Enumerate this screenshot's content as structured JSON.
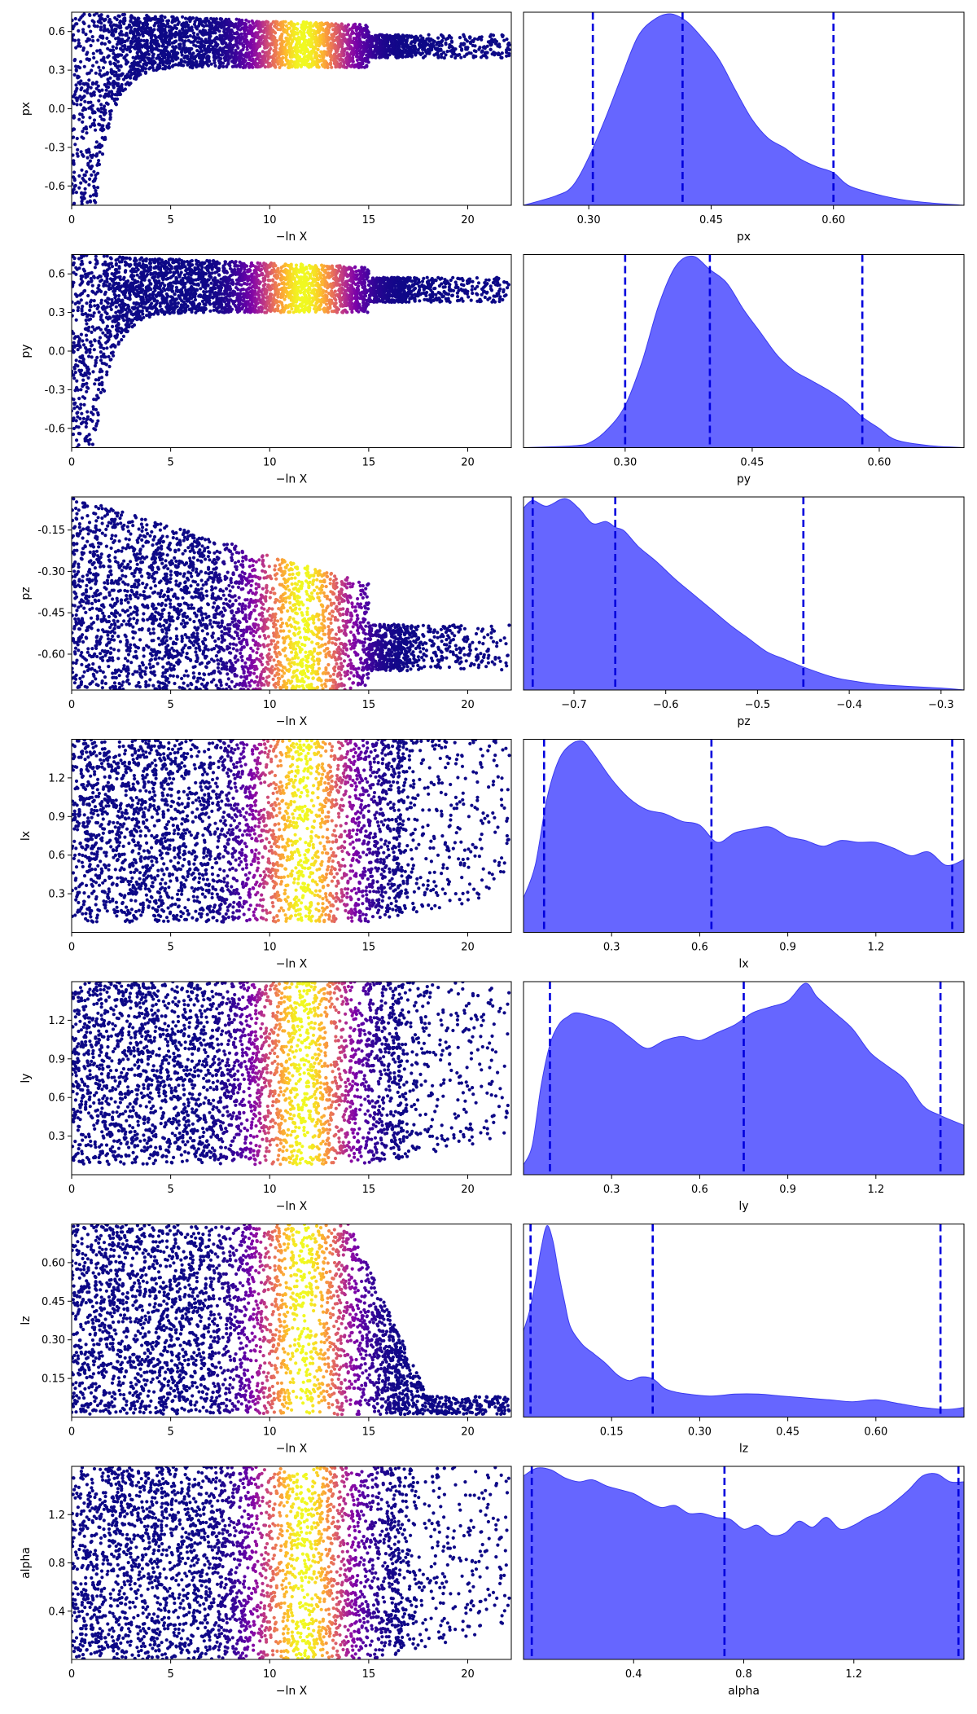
{
  "colors": {
    "kde_fill": "#6666ff",
    "kde_edge": "#3b3bf0",
    "quantile_line": "#0000dd",
    "scatter_colormap": "plasma"
  },
  "chart_data": [
    {
      "type": "scatter",
      "panel": "trace-px",
      "xlabel": "−ln X",
      "ylabel": "px",
      "xlim": [
        0,
        22.2
      ],
      "ylim": [
        -0.75,
        0.75
      ],
      "xticks": [
        "0",
        "5",
        "10",
        "15",
        "20"
      ],
      "yticks": [
        "0.6",
        "0.3",
        "0.0",
        "-0.3",
        "-0.6"
      ],
      "shape": "converge",
      "y_converged": [
        0.32,
        0.62
      ],
      "weight_peak_x": 11.7
    },
    {
      "type": "area",
      "panel": "kde-px",
      "xlabel": "px",
      "xlim": [
        0.22,
        0.76
      ],
      "xticks": [
        "0.30",
        "0.45",
        "0.60"
      ],
      "x": [
        0.22,
        0.26,
        0.28,
        0.3,
        0.32,
        0.34,
        0.36,
        0.38,
        0.4,
        0.42,
        0.44,
        0.46,
        0.48,
        0.5,
        0.52,
        0.54,
        0.56,
        0.58,
        0.6,
        0.62,
        0.66,
        0.7,
        0.76
      ],
      "density": [
        0.0,
        0.05,
        0.1,
        0.25,
        0.45,
        0.67,
        0.88,
        0.97,
        1.0,
        0.96,
        0.87,
        0.76,
        0.6,
        0.45,
        0.35,
        0.3,
        0.24,
        0.2,
        0.17,
        0.1,
        0.05,
        0.02,
        0.0
      ],
      "quantiles": [
        0.305,
        0.415,
        0.6
      ]
    },
    {
      "type": "scatter",
      "panel": "trace-py",
      "xlabel": "−ln X",
      "ylabel": "py",
      "xlim": [
        0,
        22.2
      ],
      "ylim": [
        -0.75,
        0.75
      ],
      "xticks": [
        "0",
        "5",
        "10",
        "15",
        "20"
      ],
      "yticks": [
        "0.6",
        "0.3",
        "0.0",
        "-0.3",
        "-0.6"
      ],
      "shape": "converge",
      "y_converged": [
        0.3,
        0.62
      ],
      "weight_peak_x": 11.7
    },
    {
      "type": "area",
      "panel": "kde-py",
      "xlabel": "py",
      "xlim": [
        0.18,
        0.7
      ],
      "xticks": [
        "0.30",
        "0.45",
        "0.60"
      ],
      "x": [
        0.18,
        0.24,
        0.26,
        0.28,
        0.3,
        0.32,
        0.34,
        0.36,
        0.38,
        0.4,
        0.42,
        0.44,
        0.46,
        0.48,
        0.5,
        0.52,
        0.54,
        0.56,
        0.58,
        0.6,
        0.62,
        0.66,
        0.7
      ],
      "density": [
        0.0,
        0.01,
        0.03,
        0.1,
        0.22,
        0.45,
        0.75,
        0.95,
        1.0,
        0.93,
        0.86,
        0.72,
        0.6,
        0.48,
        0.4,
        0.35,
        0.3,
        0.24,
        0.16,
        0.1,
        0.04,
        0.01,
        0.0
      ],
      "quantiles": [
        0.3,
        0.4,
        0.58
      ]
    },
    {
      "type": "scatter",
      "panel": "trace-pz",
      "xlabel": "−ln X",
      "ylabel": "pz",
      "xlim": [
        0,
        22.2
      ],
      "ylim": [
        -0.73,
        -0.03
      ],
      "xticks": [
        "0",
        "5",
        "10",
        "15",
        "20"
      ],
      "yticks": [
        "-0.15",
        "-0.30",
        "-0.45",
        "-0.60"
      ],
      "shape": "converge",
      "y_converged": [
        -0.73,
        -0.45
      ],
      "weight_peak_x": 11.7
    },
    {
      "type": "area",
      "panel": "kde-pz",
      "xlabel": "pz",
      "xlim": [
        -0.755,
        -0.275
      ],
      "xticks": [
        "−0.7",
        "−0.6",
        "−0.5",
        "−0.4",
        "−0.3"
      ],
      "x": [
        -0.755,
        -0.745,
        -0.73,
        -0.71,
        -0.695,
        -0.68,
        -0.665,
        -0.655,
        -0.645,
        -0.63,
        -0.61,
        -0.59,
        -0.57,
        -0.55,
        -0.53,
        -0.51,
        -0.49,
        -0.47,
        -0.45,
        -0.42,
        -0.4,
        -0.37,
        -0.34,
        -0.3,
        -0.275
      ],
      "density": [
        0.95,
        0.99,
        0.96,
        1.0,
        0.95,
        0.87,
        0.88,
        0.85,
        0.83,
        0.75,
        0.67,
        0.58,
        0.5,
        0.42,
        0.34,
        0.27,
        0.2,
        0.16,
        0.12,
        0.07,
        0.05,
        0.03,
        0.02,
        0.01,
        0.0
      ],
      "quantiles": [
        -0.745,
        -0.655,
        -0.45
      ]
    },
    {
      "type": "scatter",
      "panel": "trace-lx",
      "xlabel": "−ln X",
      "ylabel": "lx",
      "xlim": [
        0,
        22.2
      ],
      "ylim": [
        0.0,
        1.5
      ],
      "xticks": [
        "0",
        "5",
        "10",
        "15",
        "20"
      ],
      "yticks": [
        "1.2",
        "0.9",
        "0.6",
        "0.3"
      ],
      "shape": "band",
      "y_converged": [
        0.08,
        1.5
      ],
      "weight_peak_x": 11.7
    },
    {
      "type": "area",
      "panel": "kde-lx",
      "xlabel": "lx",
      "xlim": [
        0.0,
        1.5
      ],
      "xticks": [
        "0.3",
        "0.6",
        "0.9",
        "1.2"
      ],
      "x": [
        0.0,
        0.04,
        0.08,
        0.12,
        0.16,
        0.2,
        0.24,
        0.3,
        0.36,
        0.42,
        0.48,
        0.54,
        0.6,
        0.66,
        0.72,
        0.78,
        0.84,
        0.9,
        0.96,
        1.02,
        1.08,
        1.14,
        1.2,
        1.26,
        1.32,
        1.38,
        1.44,
        1.5
      ],
      "density": [
        0.18,
        0.35,
        0.7,
        0.9,
        0.98,
        1.0,
        0.93,
        0.8,
        0.7,
        0.64,
        0.62,
        0.58,
        0.56,
        0.47,
        0.52,
        0.54,
        0.55,
        0.5,
        0.48,
        0.45,
        0.48,
        0.47,
        0.47,
        0.44,
        0.4,
        0.42,
        0.35,
        0.38
      ],
      "quantiles": [
        0.07,
        0.64,
        1.46
      ]
    },
    {
      "type": "scatter",
      "panel": "trace-ly",
      "xlabel": "−ln X",
      "ylabel": "ly",
      "xlim": [
        0,
        22.2
      ],
      "ylim": [
        0.0,
        1.5
      ],
      "xticks": [
        "0",
        "5",
        "10",
        "15",
        "20"
      ],
      "yticks": [
        "1.2",
        "0.9",
        "0.6",
        "0.3"
      ],
      "shape": "band",
      "y_converged": [
        0.08,
        1.5
      ],
      "weight_peak_x": 11.7
    },
    {
      "type": "area",
      "panel": "kde-ly",
      "xlabel": "ly",
      "xlim": [
        0.0,
        1.5
      ],
      "xticks": [
        "0.3",
        "0.6",
        "0.9",
        "1.2"
      ],
      "x": [
        0.0,
        0.03,
        0.06,
        0.09,
        0.12,
        0.15,
        0.18,
        0.24,
        0.3,
        0.36,
        0.42,
        0.48,
        0.54,
        0.6,
        0.66,
        0.72,
        0.78,
        0.84,
        0.9,
        0.96,
        1.0,
        1.06,
        1.12,
        1.18,
        1.24,
        1.3,
        1.36,
        1.42,
        1.5
      ],
      "density": [
        0.05,
        0.15,
        0.45,
        0.66,
        0.76,
        0.8,
        0.82,
        0.8,
        0.77,
        0.7,
        0.64,
        0.68,
        0.7,
        0.68,
        0.72,
        0.76,
        0.82,
        0.85,
        0.88,
        0.97,
        0.9,
        0.82,
        0.74,
        0.62,
        0.55,
        0.48,
        0.35,
        0.3,
        0.25
      ],
      "quantiles": [
        0.09,
        0.75,
        1.42
      ]
    },
    {
      "type": "scatter",
      "panel": "trace-lz",
      "xlabel": "−ln X",
      "ylabel": "lz",
      "xlim": [
        0,
        22.2
      ],
      "ylim": [
        0.0,
        0.75
      ],
      "xticks": [
        "0",
        "5",
        "10",
        "15",
        "20"
      ],
      "yticks": [
        "0.60",
        "0.45",
        "0.30",
        "0.15"
      ],
      "shape": "shrink",
      "y_converged": [
        0.01,
        0.75
      ],
      "weight_peak_x": 11.7
    },
    {
      "type": "area",
      "panel": "kde-lz",
      "xlabel": "lz",
      "xlim": [
        0.0,
        0.75
      ],
      "xticks": [
        "0.15",
        "0.30",
        "0.45",
        "0.60"
      ],
      "x": [
        0.0,
        0.01,
        0.02,
        0.03,
        0.04,
        0.05,
        0.06,
        0.07,
        0.08,
        0.1,
        0.12,
        0.14,
        0.16,
        0.18,
        0.2,
        0.22,
        0.24,
        0.26,
        0.28,
        0.32,
        0.36,
        0.4,
        0.44,
        0.48,
        0.52,
        0.56,
        0.6,
        0.64,
        0.68,
        0.72,
        0.75
      ],
      "density": [
        0.45,
        0.55,
        0.7,
        0.88,
        1.0,
        0.92,
        0.75,
        0.6,
        0.47,
        0.38,
        0.33,
        0.28,
        0.22,
        0.19,
        0.21,
        0.2,
        0.15,
        0.13,
        0.12,
        0.11,
        0.12,
        0.12,
        0.11,
        0.1,
        0.09,
        0.08,
        0.09,
        0.07,
        0.05,
        0.04,
        0.05
      ],
      "quantiles": [
        0.012,
        0.22,
        0.71
      ]
    },
    {
      "type": "scatter",
      "panel": "trace-alpha",
      "xlabel": "−ln X",
      "ylabel": "alpha",
      "xlim": [
        0,
        22.2
      ],
      "ylim": [
        0.0,
        1.6
      ],
      "xticks": [
        "0",
        "5",
        "10",
        "15",
        "20"
      ],
      "yticks": [
        "1.2",
        "0.8",
        "0.4"
      ],
      "shape": "band",
      "y_converged": [
        0.0,
        1.6
      ],
      "weight_peak_x": 11.7
    },
    {
      "type": "area",
      "panel": "kde-alpha",
      "xlabel": "alpha",
      "xlim": [
        0.0,
        1.6
      ],
      "xticks": [
        "0.4",
        "0.8",
        "1.2"
      ],
      "x": [
        0.0,
        0.05,
        0.1,
        0.15,
        0.2,
        0.25,
        0.3,
        0.35,
        0.4,
        0.45,
        0.5,
        0.55,
        0.6,
        0.65,
        0.7,
        0.75,
        0.8,
        0.85,
        0.9,
        0.95,
        1.0,
        1.05,
        1.1,
        1.15,
        1.2,
        1.25,
        1.3,
        1.35,
        1.4,
        1.45,
        1.5,
        1.55,
        1.6
      ],
      "density": [
        0.93,
        0.97,
        0.96,
        0.92,
        0.9,
        0.91,
        0.88,
        0.86,
        0.84,
        0.8,
        0.77,
        0.78,
        0.74,
        0.74,
        0.72,
        0.71,
        0.66,
        0.68,
        0.63,
        0.64,
        0.7,
        0.67,
        0.72,
        0.66,
        0.68,
        0.72,
        0.75,
        0.8,
        0.86,
        0.93,
        0.94,
        0.9,
        0.9
      ],
      "quantiles": [
        0.03,
        0.73,
        1.58
      ]
    }
  ]
}
